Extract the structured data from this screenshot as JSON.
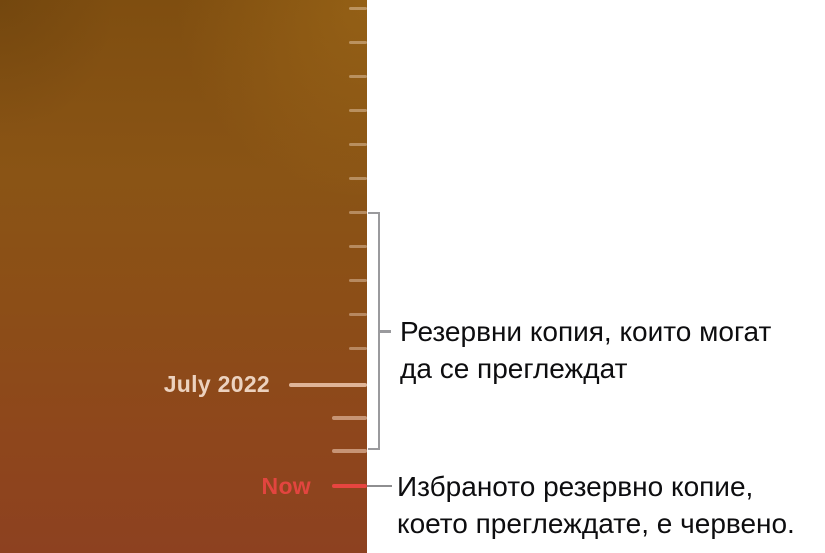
{
  "timeline": {
    "month_label": "July 2022",
    "now_label": "Now",
    "short_tick_y": [
      9,
      43,
      77,
      111,
      145,
      179,
      213,
      247,
      281,
      315,
      349
    ],
    "long_tick_y": [
      418,
      451
    ],
    "month_tick_y": 385,
    "now_tick_y": 486
  },
  "annotations": {
    "browsable": {
      "line1": "Резервни копия, които могат",
      "line2": "да се преглеждат"
    },
    "selected": {
      "line1": "Избраното резервно копие,",
      "line2": "което преглеждате, е червено."
    }
  },
  "colors": {
    "now_red": "#e74540",
    "now_label_red": "#e2453f",
    "month_label_cream": "#ecd2bf",
    "month_tick": "rgba(255,222,200,0.72)",
    "tick_light": "rgba(255,235,215,0.38)",
    "bracket_gray": "#9a9a9d",
    "annotation_text": "#0d0d0f"
  }
}
